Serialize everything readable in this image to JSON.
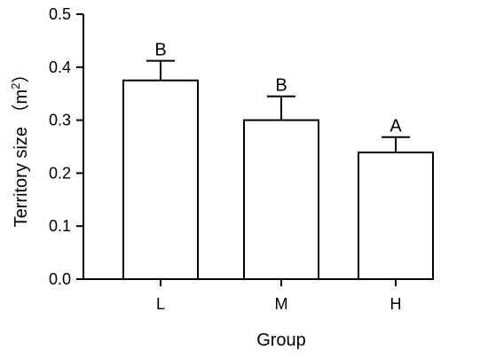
{
  "chart_data": {
    "type": "bar",
    "categories": [
      "L",
      "M",
      "H"
    ],
    "values": [
      0.375,
      0.3,
      0.239
    ],
    "errors": [
      0.037,
      0.045,
      0.029
    ],
    "significance_letters": [
      "B",
      "B",
      "A"
    ],
    "xlabel": "Group",
    "ylabel_main": "Territory size （m",
    "ylabel_sup": "2",
    "ylabel_close": "）",
    "ylim": [
      0,
      0.5
    ],
    "yticks": [
      0.0,
      0.1,
      0.2,
      0.3,
      0.4,
      0.5
    ],
    "ytick_labels": [
      "0.0",
      "0.1",
      "0.2",
      "0.3",
      "0.4",
      "0.5"
    ],
    "grid": false,
    "colors": {
      "bar_fill": "#ffffff",
      "bar_stroke": "#000000"
    }
  }
}
